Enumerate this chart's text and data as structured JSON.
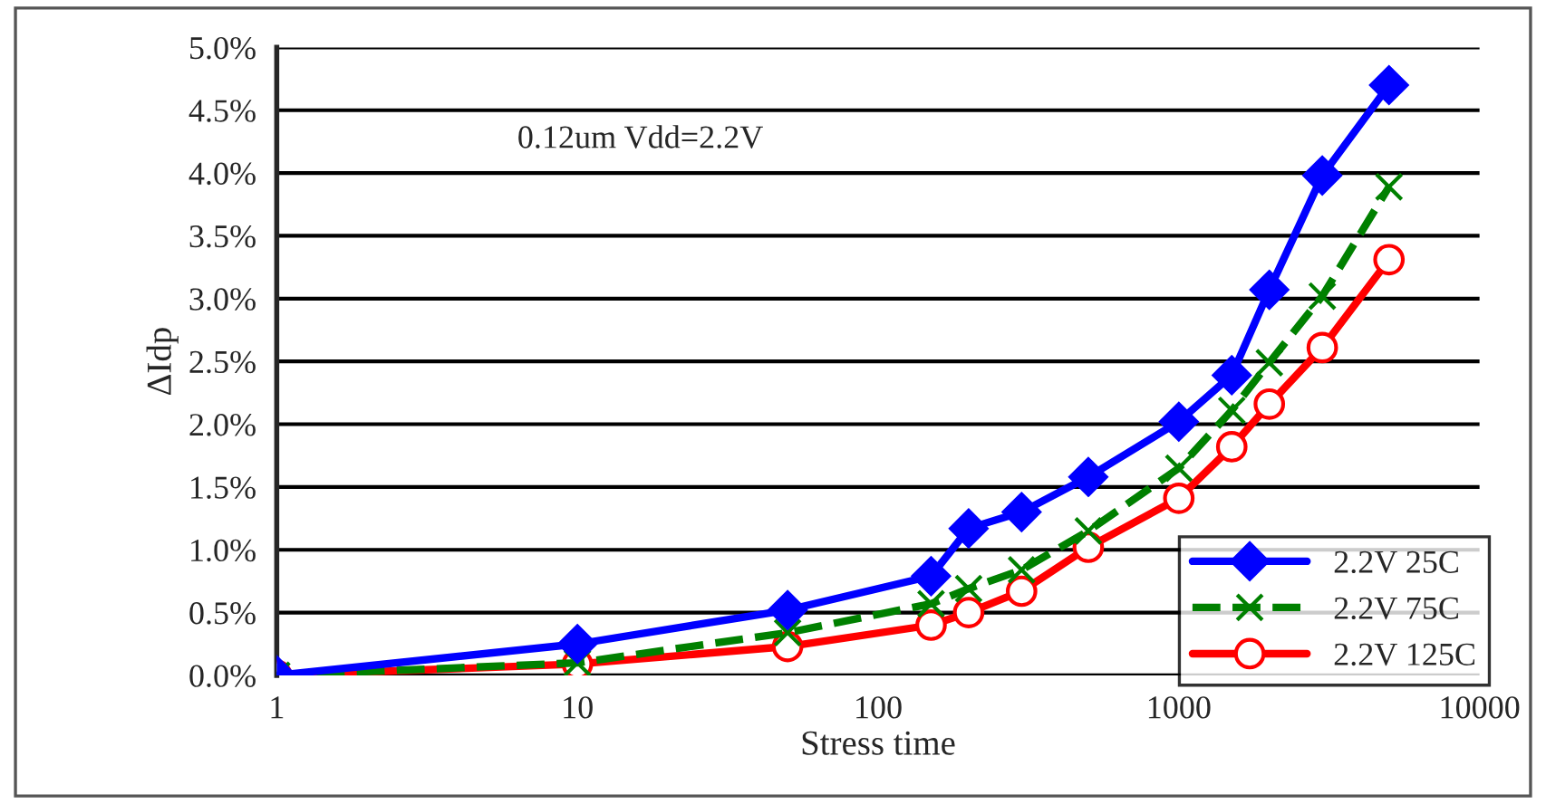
{
  "chart_data": {
    "type": "line",
    "xlabel": "Stress time",
    "ylabel": "ΔIdp",
    "annotations": [
      "0.12um Vdd=2.2V"
    ],
    "x": [
      1,
      10,
      50,
      150,
      200,
      300,
      500,
      1000,
      1500,
      2000,
      3000,
      5000
    ],
    "series": [
      {
        "name": "2.2V 25C",
        "color": "#0000ff",
        "marker": "diamond",
        "line_style": "solid",
        "values": [
          0,
          0.25,
          0.52,
          0.79,
          1.17,
          1.3,
          1.58,
          2.02,
          2.39,
          3.07,
          3.98,
          4.7
        ]
      },
      {
        "name": "2.2V 75C",
        "color": "#008000",
        "marker": "cross",
        "line_style": "dashed",
        "values": [
          0,
          0.1,
          0.34,
          0.57,
          0.69,
          0.84,
          1.15,
          1.65,
          2.11,
          2.49,
          3.02,
          3.89
        ]
      },
      {
        "name": "2.2V 125C",
        "color": "#ff0000",
        "marker": "circle",
        "line_style": "solid",
        "values": [
          0,
          0.09,
          0.23,
          0.4,
          0.5,
          0.67,
          1.02,
          1.41,
          1.82,
          2.16,
          2.61,
          3.31
        ]
      }
    ],
    "log": "x",
    "xlim": [
      1,
      10000
    ],
    "xticks": [
      1,
      10,
      100,
      1000,
      10000
    ],
    "ylim": [
      0,
      5
    ],
    "yticks": [
      {
        "value": 0,
        "label": "0.0%"
      },
      {
        "value": 0.5,
        "label": "0.5%"
      },
      {
        "value": 1,
        "label": "1.0%"
      },
      {
        "value": 1.5,
        "label": "1.5%"
      },
      {
        "value": 2,
        "label": "2.0%"
      },
      {
        "value": 2.5,
        "label": "2.5%"
      },
      {
        "value": 3,
        "label": "3.0%"
      },
      {
        "value": 3.5,
        "label": "3.5%"
      },
      {
        "value": 4,
        "label": "4.0%"
      },
      {
        "value": 4.5,
        "label": "4.5%"
      },
      {
        "value": 5,
        "label": "5.0%"
      }
    ],
    "grid": "y",
    "legend": "bottom right"
  }
}
